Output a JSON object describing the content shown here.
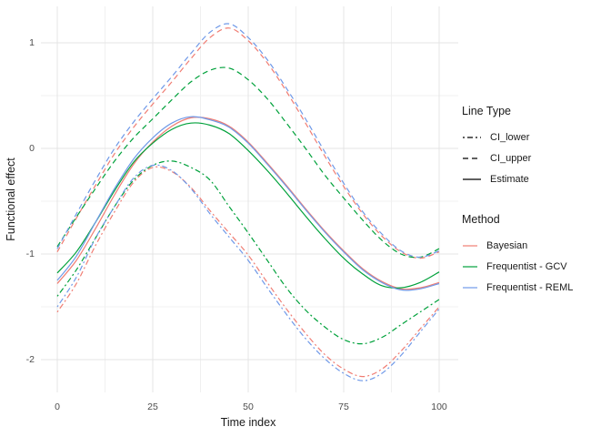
{
  "figure": {
    "x_axis": {
      "title": "Time index",
      "tick_labels": [
        "0",
        "25",
        "50",
        "75",
        "100"
      ],
      "tick_values": [
        0,
        25,
        50,
        75,
        100
      ],
      "minor_values": [
        12.5,
        37.5,
        62.5,
        87.5
      ],
      "range": [
        0,
        100
      ]
    },
    "y_axis": {
      "title": "Functional effect",
      "tick_labels": [
        "1",
        "0",
        "-1",
        "-2"
      ],
      "tick_values": [
        1,
        0,
        -1,
        -2
      ],
      "minor_values": [
        0.5,
        -0.5,
        -1.5
      ],
      "range": [
        -2.38,
        1.36
      ]
    },
    "grid": {
      "major_color": "#E4E4E4",
      "minor_color": "#F0F0F0",
      "background": "#FFFFFF"
    }
  },
  "legend": {
    "line_type": {
      "title": "Line Type",
      "key_color": "#000000",
      "items": [
        {
          "label": "CI_lower",
          "dash": "2 3 6 3"
        },
        {
          "label": "CI_upper",
          "dash": "6 4"
        },
        {
          "label": "Estimate",
          "dash": ""
        }
      ]
    },
    "method": {
      "title": "Method",
      "items": [
        {
          "label": "Bayesian",
          "color": "#F07D73"
        },
        {
          "label": "Frequentist - GCV",
          "color": "#00A13B"
        },
        {
          "label": "Frequentist - REML",
          "color": "#6F99E8"
        }
      ]
    }
  },
  "chart_data": {
    "type": "line",
    "title": "",
    "xlabel": "Time index",
    "ylabel": "Functional effect",
    "xlim": [
      0,
      100
    ],
    "ylim": [
      -2.38,
      1.36
    ],
    "grid": true,
    "legend_position": "right",
    "x": [
      0,
      5,
      10,
      15,
      20,
      25,
      30,
      35,
      40,
      45,
      50,
      55,
      60,
      65,
      70,
      75,
      80,
      85,
      90,
      95,
      100
    ],
    "series": [
      {
        "name": "Bayesian CI_lower",
        "method": "Bayesian",
        "line_type": "CI_lower",
        "values": [
          -1.55,
          -1.28,
          -0.92,
          -0.6,
          -0.32,
          -0.18,
          -0.22,
          -0.37,
          -0.59,
          -0.8,
          -1.01,
          -1.27,
          -1.52,
          -1.75,
          -1.95,
          -2.09,
          -2.16,
          -2.09,
          -1.92,
          -1.71,
          -1.5
        ]
      },
      {
        "name": "Bayesian CI_upper",
        "method": "Bayesian",
        "line_type": "CI_upper",
        "values": [
          -0.98,
          -0.66,
          -0.35,
          -0.05,
          0.2,
          0.42,
          0.63,
          0.85,
          1.05,
          1.14,
          1.02,
          0.81,
          0.54,
          0.24,
          -0.07,
          -0.36,
          -0.62,
          -0.83,
          -0.98,
          -1.04,
          -0.98
        ]
      },
      {
        "name": "Bayesian Estimate",
        "method": "Bayesian",
        "line_type": "Estimate",
        "values": [
          -1.28,
          -1.06,
          -0.76,
          -0.44,
          -0.15,
          0.06,
          0.21,
          0.29,
          0.28,
          0.21,
          0.06,
          -0.14,
          -0.35,
          -0.57,
          -0.78,
          -0.97,
          -1.14,
          -1.26,
          -1.33,
          -1.32,
          -1.27
        ]
      },
      {
        "name": "Frequentist - GCV CI_lower",
        "method": "Frequentist - GCV",
        "line_type": "CI_lower",
        "values": [
          -1.4,
          -1.15,
          -0.85,
          -0.55,
          -0.3,
          -0.16,
          -0.12,
          -0.18,
          -0.3,
          -0.55,
          -0.8,
          -1.06,
          -1.32,
          -1.53,
          -1.69,
          -1.81,
          -1.85,
          -1.79,
          -1.67,
          -1.55,
          -1.43
        ]
      },
      {
        "name": "Frequentist - GCV CI_upper",
        "method": "Frequentist - GCV",
        "line_type": "CI_upper",
        "values": [
          -0.93,
          -0.65,
          -0.38,
          -0.12,
          0.1,
          0.28,
          0.46,
          0.63,
          0.74,
          0.76,
          0.65,
          0.47,
          0.24,
          0.0,
          -0.25,
          -0.47,
          -0.68,
          -0.87,
          -1.0,
          -1.03,
          -0.95
        ]
      },
      {
        "name": "Frequentist - GCV Estimate",
        "method": "Frequentist - GCV",
        "line_type": "Estimate",
        "values": [
          -1.18,
          -0.98,
          -0.7,
          -0.4,
          -0.13,
          0.05,
          0.18,
          0.24,
          0.22,
          0.14,
          -0.02,
          -0.21,
          -0.42,
          -0.64,
          -0.85,
          -1.04,
          -1.19,
          -1.3,
          -1.32,
          -1.27,
          -1.17
        ]
      },
      {
        "name": "Frequentist - REML CI_lower",
        "method": "Frequentist - REML",
        "line_type": "CI_lower",
        "values": [
          -1.5,
          -1.22,
          -0.85,
          -0.55,
          -0.28,
          -0.16,
          -0.21,
          -0.38,
          -0.62,
          -0.84,
          -1.06,
          -1.32,
          -1.57,
          -1.8,
          -1.99,
          -2.13,
          -2.2,
          -2.13,
          -1.96,
          -1.74,
          -1.52
        ]
      },
      {
        "name": "Frequentist - REML CI_upper",
        "method": "Frequentist - REML",
        "line_type": "CI_upper",
        "values": [
          -0.95,
          -0.62,
          -0.3,
          0.0,
          0.25,
          0.47,
          0.68,
          0.9,
          1.1,
          1.18,
          1.05,
          0.84,
          0.57,
          0.28,
          -0.03,
          -0.33,
          -0.6,
          -0.81,
          -0.97,
          -1.03,
          -0.97
        ]
      },
      {
        "name": "Frequentist - REML Estimate",
        "method": "Frequentist - REML",
        "line_type": "Estimate",
        "values": [
          -1.25,
          -1.02,
          -0.7,
          -0.38,
          -0.1,
          0.1,
          0.24,
          0.3,
          0.27,
          0.2,
          0.05,
          -0.15,
          -0.36,
          -0.58,
          -0.79,
          -0.98,
          -1.15,
          -1.27,
          -1.34,
          -1.33,
          -1.28
        ]
      }
    ]
  }
}
